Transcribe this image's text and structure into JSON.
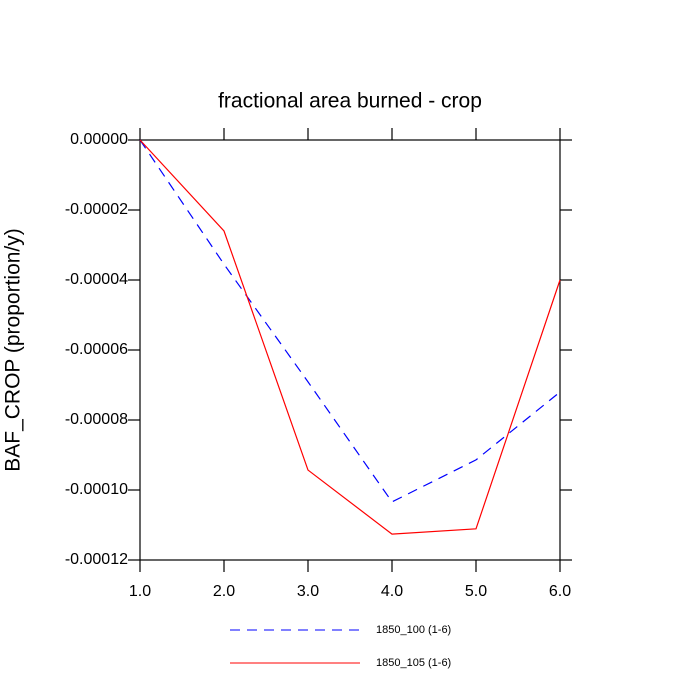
{
  "chart_data": {
    "type": "line",
    "title": "fractional area burned - crop",
    "y_label": "BAF_CROP  (proportion/y)",
    "x": [
      1,
      2,
      3,
      4,
      5,
      6
    ],
    "series": [
      {
        "name": "1850_100 (1-6)",
        "color": "#0000ff",
        "dash": true,
        "values": [
          0,
          -3.55e-05,
          -6.91e-05,
          -0.0001034,
          -9.14e-05,
          -7.2e-05
        ]
      },
      {
        "name": "1850_105 (1-6)",
        "color": "#ff0000",
        "dash": false,
        "values": [
          0,
          -2.6e-05,
          -9.43e-05,
          -0.0001126,
          -0.0001111,
          -4e-05
        ]
      }
    ],
    "xlim": [
      1,
      6
    ],
    "xticks": [
      {
        "value": 1,
        "label": "1.0"
      },
      {
        "value": 2,
        "label": "2.0"
      },
      {
        "value": 3,
        "label": "3.0"
      },
      {
        "value": 4,
        "label": "4.0"
      },
      {
        "value": 5,
        "label": "5.0"
      },
      {
        "value": 6,
        "label": "6.0"
      }
    ],
    "ylim": [
      -0.00012,
      0
    ],
    "yticks": [
      {
        "value": -0.00012,
        "label": "-0.00012"
      },
      {
        "value": -0.0001,
        "label": "-0.00010"
      },
      {
        "value": -8e-05,
        "label": "-0.00008"
      },
      {
        "value": -6e-05,
        "label": "-0.00006"
      },
      {
        "value": -4e-05,
        "label": "-0.00004"
      },
      {
        "value": -2e-05,
        "label": "-0.00002"
      },
      {
        "value": 0,
        "label": "0.00000"
      }
    ]
  }
}
